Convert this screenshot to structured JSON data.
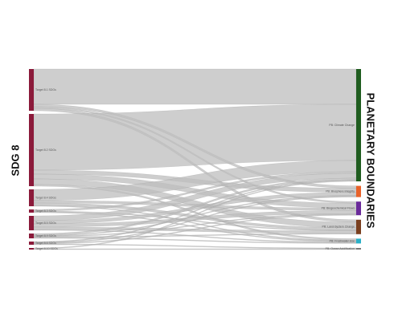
{
  "chart_data": {
    "type": "sankey",
    "left_title": "SDG 8",
    "right_title": "PLANETARY BOUNDARIES",
    "link_color": "#bdbdbd",
    "source_color": "#8b1a3a",
    "sources": [
      "Target 8.1 SDGs",
      "Target 8.2 SDGs",
      "Target 8.4 SDGs",
      "Target 8.3 SDGs",
      "Target 8.5 SDGs",
      "Target 8.9 SDGs",
      "Target 8.6 SDGs",
      "Target 8.10 SDGs"
    ],
    "targets": [
      {
        "name": "PB: Climate Change",
        "color": "#1f5c1f"
      },
      {
        "name": "PB: Biosphere Integrity",
        "color": "#e8622a"
      },
      {
        "name": "PB: Biogeochemical Flows",
        "color": "#6a2a9a"
      },
      {
        "name": "PB: Land-System Change",
        "color": "#7a3f1f"
      },
      {
        "name": "PB: Freshwater Use",
        "color": "#2ab0c8"
      },
      {
        "name": "PB: Ocean Acidification",
        "color": "#777777"
      }
    ],
    "links": [
      {
        "source": 0,
        "target": 0,
        "value": 44
      },
      {
        "source": 0,
        "target": 1,
        "value": 3
      },
      {
        "source": 0,
        "target": 2,
        "value": 2
      },
      {
        "source": 0,
        "target": 3,
        "value": 3
      },
      {
        "source": 1,
        "target": 0,
        "value": 70
      },
      {
        "source": 1,
        "target": 1,
        "value": 5
      },
      {
        "source": 1,
        "target": 2,
        "value": 6
      },
      {
        "source": 1,
        "target": 3,
        "value": 7
      },
      {
        "source": 1,
        "target": 4,
        "value": 2
      },
      {
        "source": 2,
        "target": 0,
        "value": 14
      },
      {
        "source": 2,
        "target": 2,
        "value": 3
      },
      {
        "source": 2,
        "target": 3,
        "value": 3
      },
      {
        "source": 2,
        "target": 4,
        "value": 1
      },
      {
        "source": 3,
        "target": 0,
        "value": 2
      },
      {
        "source": 3,
        "target": 3,
        "value": 1
      },
      {
        "source": 3,
        "target": 4,
        "value": 1
      },
      {
        "source": 4,
        "target": 0,
        "value": 6
      },
      {
        "source": 4,
        "target": 1,
        "value": 4
      },
      {
        "source": 4,
        "target": 2,
        "value": 4
      },
      {
        "source": 4,
        "target": 3,
        "value": 3
      },
      {
        "source": 4,
        "target": 4,
        "value": 1
      },
      {
        "source": 5,
        "target": 0,
        "value": 2
      },
      {
        "source": 5,
        "target": 1,
        "value": 1
      },
      {
        "source": 5,
        "target": 2,
        "value": 1
      },
      {
        "source": 5,
        "target": 3,
        "value": 1
      },
      {
        "source": 5,
        "target": 4,
        "value": 1
      },
      {
        "source": 6,
        "target": 0,
        "value": 1
      },
      {
        "source": 6,
        "target": 1,
        "value": 1
      },
      {
        "source": 6,
        "target": 2,
        "value": 1
      },
      {
        "source": 6,
        "target": 5,
        "value": 1
      },
      {
        "source": 7,
        "target": 0,
        "value": 1
      },
      {
        "source": 7,
        "target": 5,
        "value": 1
      }
    ]
  }
}
